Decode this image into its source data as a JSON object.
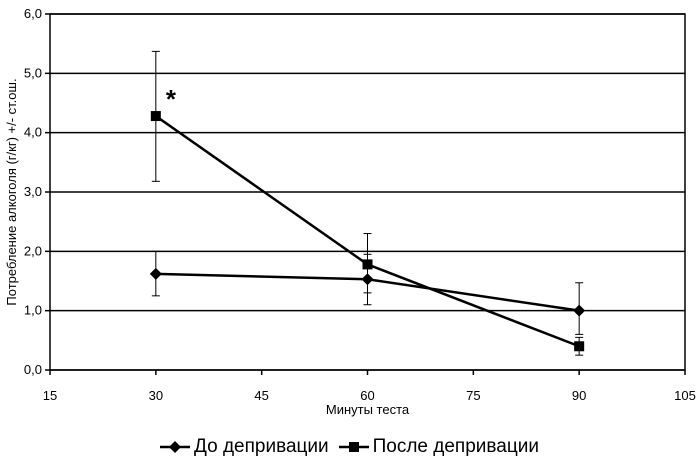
{
  "chart_data": {
    "type": "line",
    "xlabel": "Минуты теста",
    "ylabel": "Потребление алкоголя (г/кг) +/- ст.ош.",
    "xlim": [
      15,
      105
    ],
    "ylim": [
      0,
      6
    ],
    "x_ticks": [
      "15",
      "30",
      "45",
      "60",
      "75",
      "90",
      "105"
    ],
    "y_ticks": [
      "0,0",
      "1,0",
      "2,0",
      "3,0",
      "4,0",
      "5,0",
      "6,0"
    ],
    "grid": "horizontal",
    "legend_position": "bottom",
    "x": [
      30,
      60,
      90
    ],
    "series": [
      {
        "name": "До депривации",
        "marker": "diamond",
        "values": [
          1.62,
          1.53,
          1.0
        ],
        "error_low": [
          1.25,
          1.1,
          0.6
        ],
        "error_high": [
          2.0,
          1.95,
          1.47
        ]
      },
      {
        "name": "После депривации",
        "marker": "square",
        "values": [
          4.28,
          1.78,
          0.4
        ],
        "error_low": [
          3.18,
          1.3,
          0.25
        ],
        "error_high": [
          5.37,
          2.3,
          0.55
        ]
      }
    ],
    "annotations": [
      {
        "text": "*",
        "x": 30,
        "y": 4.28
      }
    ]
  }
}
